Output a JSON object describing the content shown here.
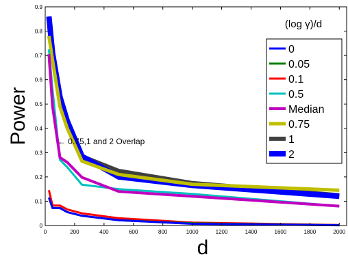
{
  "chart_data": {
    "type": "line",
    "xlabel": "d",
    "ylabel": "Power",
    "xlim": [
      0,
      2050
    ],
    "ylim": [
      0,
      0.9
    ],
    "xticks": [
      0,
      200,
      400,
      600,
      800,
      1000,
      1200,
      1400,
      1600,
      1800,
      2000
    ],
    "yticks": [
      0,
      0.1,
      0.2,
      0.3,
      0.4,
      0.5,
      0.6,
      0.7,
      0.8,
      0.9
    ],
    "x": [
      25,
      50,
      100,
      150,
      250,
      500,
      1000,
      2000
    ],
    "legend_title": "(log γ)/d",
    "legend_position": "top-right",
    "grid": false,
    "annotation": {
      "text": "← 0.75,1 and 2 Overlap",
      "x": 270,
      "y": 0.38
    },
    "series": [
      {
        "name": "0",
        "color": "#0000ff",
        "values": [
          0.115,
          0.072,
          0.072,
          0.055,
          0.04,
          0.022,
          0.007,
          0.001
        ]
      },
      {
        "name": "0.05",
        "color": "#008000",
        "values": [
          0.115,
          0.072,
          0.072,
          0.055,
          0.04,
          0.022,
          0.009,
          0.001
        ]
      },
      {
        "name": "0.1",
        "color": "#ff0000",
        "values": [
          0.145,
          0.082,
          0.082,
          0.066,
          0.05,
          0.03,
          0.012,
          0.002
        ]
      },
      {
        "name": "0.5",
        "color": "#00c0c0",
        "values": [
          0.725,
          0.56,
          0.27,
          0.24,
          0.168,
          0.15,
          0.13,
          0.08
        ]
      },
      {
        "name": "Median",
        "color": "#c000c0",
        "values": [
          0.705,
          0.49,
          0.28,
          0.26,
          0.198,
          0.14,
          0.12,
          0.08
        ]
      },
      {
        "name": "0.75",
        "color": "#bfbf00",
        "values": [
          0.78,
          0.68,
          0.49,
          0.4,
          0.265,
          0.21,
          0.17,
          0.145
        ]
      },
      {
        "name": "1",
        "color": "#404040",
        "values": [
          0.86,
          0.71,
          0.53,
          0.43,
          0.285,
          0.225,
          0.175,
          0.125
        ]
      },
      {
        "name": "2",
        "color": "#0000ff",
        "values": [
          0.86,
          0.71,
          0.53,
          0.43,
          0.285,
          0.2,
          0.165,
          0.12
        ]
      }
    ]
  }
}
